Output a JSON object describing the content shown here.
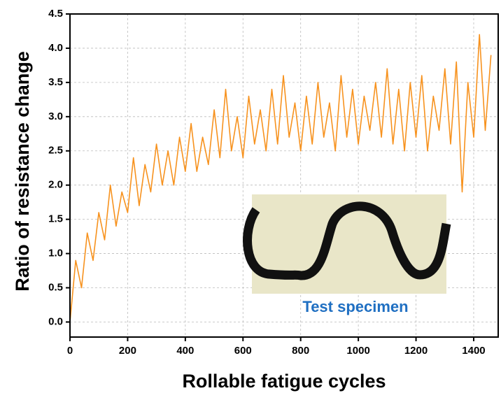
{
  "chart_data": {
    "type": "line",
    "xlabel": "Rollable fatigue cycles",
    "ylabel": "Ratio of resistance change",
    "annotation": "Test specimen",
    "color": "#f7921e",
    "grid": true,
    "x": [
      0,
      20,
      40,
      60,
      80,
      100,
      120,
      140,
      160,
      180,
      200,
      220,
      240,
      260,
      280,
      300,
      320,
      340,
      360,
      380,
      400,
      420,
      440,
      460,
      480,
      500,
      520,
      540,
      560,
      580,
      600,
      620,
      640,
      660,
      680,
      700,
      720,
      740,
      760,
      780,
      800,
      820,
      840,
      860,
      880,
      900,
      920,
      940,
      960,
      980,
      1000,
      1020,
      1040,
      1060,
      1080,
      1100,
      1120,
      1140,
      1160,
      1180,
      1200,
      1220,
      1240,
      1260,
      1280,
      1300,
      1320,
      1340,
      1360,
      1380,
      1400,
      1420,
      1440,
      1460
    ],
    "values": [
      0.0,
      0.9,
      0.5,
      1.3,
      0.9,
      1.6,
      1.2,
      2.0,
      1.4,
      1.9,
      1.6,
      2.4,
      1.7,
      2.3,
      1.9,
      2.6,
      2.0,
      2.5,
      2.0,
      2.7,
      2.2,
      2.9,
      2.2,
      2.7,
      2.3,
      3.1,
      2.4,
      3.4,
      2.5,
      3.0,
      2.4,
      3.3,
      2.6,
      3.1,
      2.5,
      3.4,
      2.6,
      3.6,
      2.7,
      3.2,
      2.5,
      3.3,
      2.6,
      3.5,
      2.7,
      3.2,
      2.5,
      3.6,
      2.7,
      3.4,
      2.6,
      3.3,
      2.8,
      3.5,
      2.7,
      3.7,
      2.6,
      3.4,
      2.5,
      3.5,
      2.7,
      3.6,
      2.5,
      3.3,
      2.8,
      3.7,
      2.6,
      3.8,
      1.9,
      3.5,
      2.7,
      4.2,
      2.8,
      3.9
    ],
    "xlim": [
      0,
      1485
    ],
    "ylim": [
      -0.22,
      4.5
    ],
    "xticks": [
      0,
      200,
      400,
      600,
      800,
      1000,
      1200,
      1400
    ],
    "yticks": [
      {
        "value": 0,
        "label": "0.0"
      },
      0.5,
      {
        "value": 1,
        "label": "1.0"
      },
      1.5,
      {
        "value": 2,
        "label": "2.0"
      },
      2.5,
      {
        "value": 3,
        "label": "3.0"
      },
      3.5,
      {
        "value": 4,
        "label": "4.0"
      },
      4.5
    ]
  }
}
